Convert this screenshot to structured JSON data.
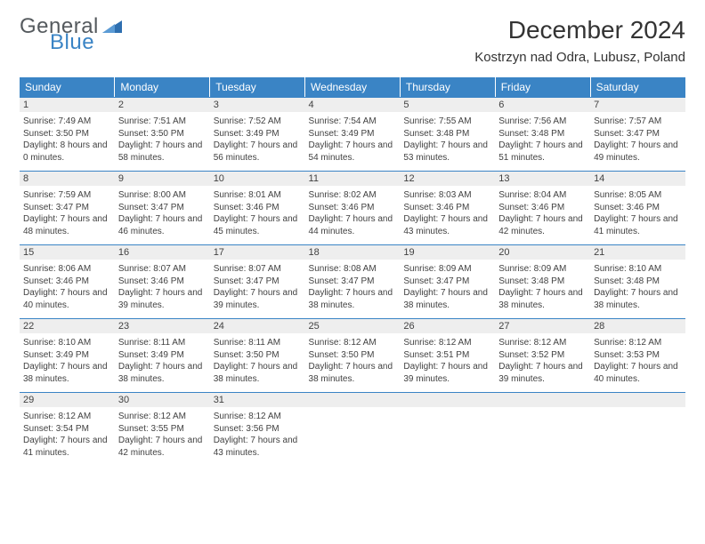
{
  "logo": {
    "text1": "General",
    "text2": "Blue",
    "tri_color": "#2e6fb0"
  },
  "title": "December 2024",
  "location": "Kostrzyn nad Odra, Lubusz, Poland",
  "colors": {
    "header_bg": "#3a84c5",
    "header_text": "#ffffff",
    "daynum_bg": "#eeeeee",
    "row_border": "#3a84c5",
    "body_text": "#414141",
    "page_bg": "#ffffff"
  },
  "typography": {
    "title_fontsize": 28,
    "location_fontsize": 15,
    "th_fontsize": 12,
    "cell_fontsize": 10
  },
  "weekdays": [
    "Sunday",
    "Monday",
    "Tuesday",
    "Wednesday",
    "Thursday",
    "Friday",
    "Saturday"
  ],
  "weeks": [
    [
      {
        "day": "1",
        "sunrise": "Sunrise: 7:49 AM",
        "sunset": "Sunset: 3:50 PM",
        "daylight": "Daylight: 8 hours and 0 minutes."
      },
      {
        "day": "2",
        "sunrise": "Sunrise: 7:51 AM",
        "sunset": "Sunset: 3:50 PM",
        "daylight": "Daylight: 7 hours and 58 minutes."
      },
      {
        "day": "3",
        "sunrise": "Sunrise: 7:52 AM",
        "sunset": "Sunset: 3:49 PM",
        "daylight": "Daylight: 7 hours and 56 minutes."
      },
      {
        "day": "4",
        "sunrise": "Sunrise: 7:54 AM",
        "sunset": "Sunset: 3:49 PM",
        "daylight": "Daylight: 7 hours and 54 minutes."
      },
      {
        "day": "5",
        "sunrise": "Sunrise: 7:55 AM",
        "sunset": "Sunset: 3:48 PM",
        "daylight": "Daylight: 7 hours and 53 minutes."
      },
      {
        "day": "6",
        "sunrise": "Sunrise: 7:56 AM",
        "sunset": "Sunset: 3:48 PM",
        "daylight": "Daylight: 7 hours and 51 minutes."
      },
      {
        "day": "7",
        "sunrise": "Sunrise: 7:57 AM",
        "sunset": "Sunset: 3:47 PM",
        "daylight": "Daylight: 7 hours and 49 minutes."
      }
    ],
    [
      {
        "day": "8",
        "sunrise": "Sunrise: 7:59 AM",
        "sunset": "Sunset: 3:47 PM",
        "daylight": "Daylight: 7 hours and 48 minutes."
      },
      {
        "day": "9",
        "sunrise": "Sunrise: 8:00 AM",
        "sunset": "Sunset: 3:47 PM",
        "daylight": "Daylight: 7 hours and 46 minutes."
      },
      {
        "day": "10",
        "sunrise": "Sunrise: 8:01 AM",
        "sunset": "Sunset: 3:46 PM",
        "daylight": "Daylight: 7 hours and 45 minutes."
      },
      {
        "day": "11",
        "sunrise": "Sunrise: 8:02 AM",
        "sunset": "Sunset: 3:46 PM",
        "daylight": "Daylight: 7 hours and 44 minutes."
      },
      {
        "day": "12",
        "sunrise": "Sunrise: 8:03 AM",
        "sunset": "Sunset: 3:46 PM",
        "daylight": "Daylight: 7 hours and 43 minutes."
      },
      {
        "day": "13",
        "sunrise": "Sunrise: 8:04 AM",
        "sunset": "Sunset: 3:46 PM",
        "daylight": "Daylight: 7 hours and 42 minutes."
      },
      {
        "day": "14",
        "sunrise": "Sunrise: 8:05 AM",
        "sunset": "Sunset: 3:46 PM",
        "daylight": "Daylight: 7 hours and 41 minutes."
      }
    ],
    [
      {
        "day": "15",
        "sunrise": "Sunrise: 8:06 AM",
        "sunset": "Sunset: 3:46 PM",
        "daylight": "Daylight: 7 hours and 40 minutes."
      },
      {
        "day": "16",
        "sunrise": "Sunrise: 8:07 AM",
        "sunset": "Sunset: 3:46 PM",
        "daylight": "Daylight: 7 hours and 39 minutes."
      },
      {
        "day": "17",
        "sunrise": "Sunrise: 8:07 AM",
        "sunset": "Sunset: 3:47 PM",
        "daylight": "Daylight: 7 hours and 39 minutes."
      },
      {
        "day": "18",
        "sunrise": "Sunrise: 8:08 AM",
        "sunset": "Sunset: 3:47 PM",
        "daylight": "Daylight: 7 hours and 38 minutes."
      },
      {
        "day": "19",
        "sunrise": "Sunrise: 8:09 AM",
        "sunset": "Sunset: 3:47 PM",
        "daylight": "Daylight: 7 hours and 38 minutes."
      },
      {
        "day": "20",
        "sunrise": "Sunrise: 8:09 AM",
        "sunset": "Sunset: 3:48 PM",
        "daylight": "Daylight: 7 hours and 38 minutes."
      },
      {
        "day": "21",
        "sunrise": "Sunrise: 8:10 AM",
        "sunset": "Sunset: 3:48 PM",
        "daylight": "Daylight: 7 hours and 38 minutes."
      }
    ],
    [
      {
        "day": "22",
        "sunrise": "Sunrise: 8:10 AM",
        "sunset": "Sunset: 3:49 PM",
        "daylight": "Daylight: 7 hours and 38 minutes."
      },
      {
        "day": "23",
        "sunrise": "Sunrise: 8:11 AM",
        "sunset": "Sunset: 3:49 PM",
        "daylight": "Daylight: 7 hours and 38 minutes."
      },
      {
        "day": "24",
        "sunrise": "Sunrise: 8:11 AM",
        "sunset": "Sunset: 3:50 PM",
        "daylight": "Daylight: 7 hours and 38 minutes."
      },
      {
        "day": "25",
        "sunrise": "Sunrise: 8:12 AM",
        "sunset": "Sunset: 3:50 PM",
        "daylight": "Daylight: 7 hours and 38 minutes."
      },
      {
        "day": "26",
        "sunrise": "Sunrise: 8:12 AM",
        "sunset": "Sunset: 3:51 PM",
        "daylight": "Daylight: 7 hours and 39 minutes."
      },
      {
        "day": "27",
        "sunrise": "Sunrise: 8:12 AM",
        "sunset": "Sunset: 3:52 PM",
        "daylight": "Daylight: 7 hours and 39 minutes."
      },
      {
        "day": "28",
        "sunrise": "Sunrise: 8:12 AM",
        "sunset": "Sunset: 3:53 PM",
        "daylight": "Daylight: 7 hours and 40 minutes."
      }
    ],
    [
      {
        "day": "29",
        "sunrise": "Sunrise: 8:12 AM",
        "sunset": "Sunset: 3:54 PM",
        "daylight": "Daylight: 7 hours and 41 minutes."
      },
      {
        "day": "30",
        "sunrise": "Sunrise: 8:12 AM",
        "sunset": "Sunset: 3:55 PM",
        "daylight": "Daylight: 7 hours and 42 minutes."
      },
      {
        "day": "31",
        "sunrise": "Sunrise: 8:12 AM",
        "sunset": "Sunset: 3:56 PM",
        "daylight": "Daylight: 7 hours and 43 minutes."
      },
      null,
      null,
      null,
      null
    ]
  ]
}
